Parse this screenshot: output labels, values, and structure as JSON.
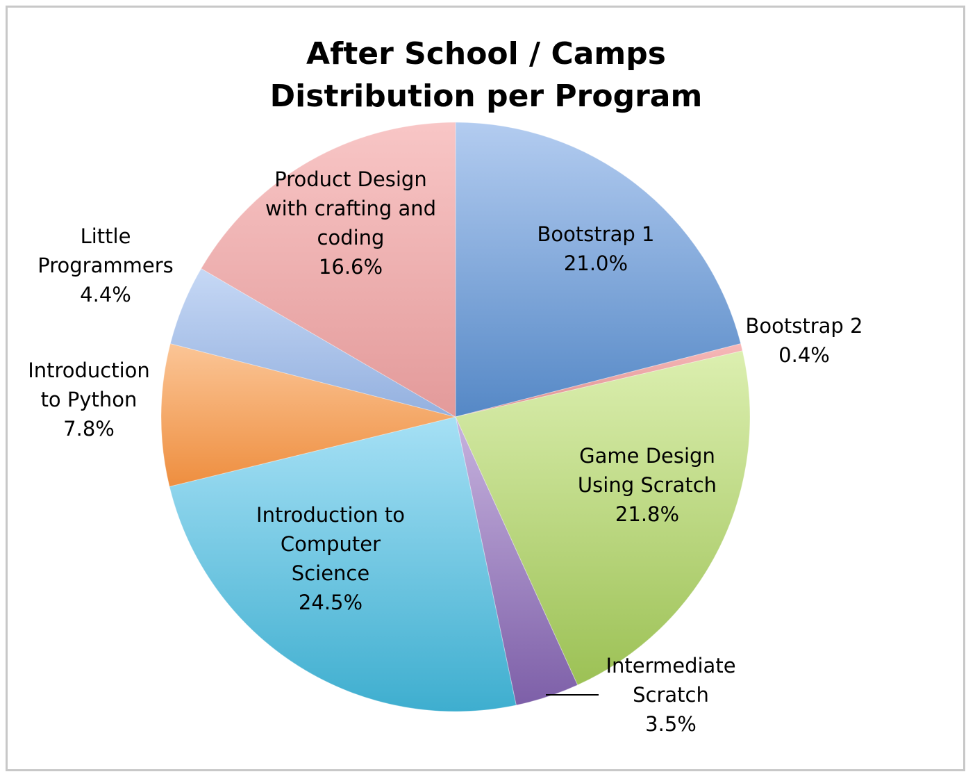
{
  "chart_data": {
    "type": "pie",
    "title": [
      "After School / Camps",
      "Distribution per Program"
    ],
    "slices": [
      {
        "name": "Bootstrap 1",
        "label_lines": [
          "Bootstrap 1",
          "21.0%"
        ],
        "value": 21.0,
        "color_light": "#b3ccf0",
        "color_dark": "#5588c6"
      },
      {
        "name": "Bootstrap 2",
        "label_lines": [
          "Bootstrap 2",
          "0.4%"
        ],
        "value": 0.4,
        "color_light": "#f7b9b9",
        "color_dark": "#dc8f8f"
      },
      {
        "name": "Game Design Using Scratch",
        "label_lines": [
          "Game Design",
          "Using Scratch",
          "21.8%"
        ],
        "value": 21.8,
        "color_light": "#dcefb0",
        "color_dark": "#9cc155"
      },
      {
        "name": "Intermediate Scratch",
        "label_lines": [
          "Intermediate",
          "Scratch",
          "3.5%"
        ],
        "value": 3.5,
        "color_light": "#c7b3de",
        "color_dark": "#7d5fa8"
      },
      {
        "name": "Introduction to Computer Science",
        "label_lines": [
          "Introduction to",
          "Computer",
          "Science",
          "24.5%"
        ],
        "value": 24.5,
        "color_light": "#a6e0f5",
        "color_dark": "#3eaecf"
      },
      {
        "name": "Introduction to Python",
        "label_lines": [
          "Introduction",
          "to Python",
          "7.8%"
        ],
        "value": 7.8,
        "color_light": "#fbc596",
        "color_dark": "#ee8e3f"
      },
      {
        "name": "Little Programmers",
        "label_lines": [
          "Little",
          "Programmers",
          "4.4%"
        ],
        "value": 4.4,
        "color_light": "#c6d8f5",
        "color_dark": "#93b0df"
      },
      {
        "name": "Product Design with crafting and coding",
        "label_lines": [
          "Product Design",
          "with crafting and",
          "coding",
          "16.6%"
        ],
        "value": 16.6,
        "color_light": "#f8c6c6",
        "color_dark": "#e39a9a"
      }
    ]
  }
}
